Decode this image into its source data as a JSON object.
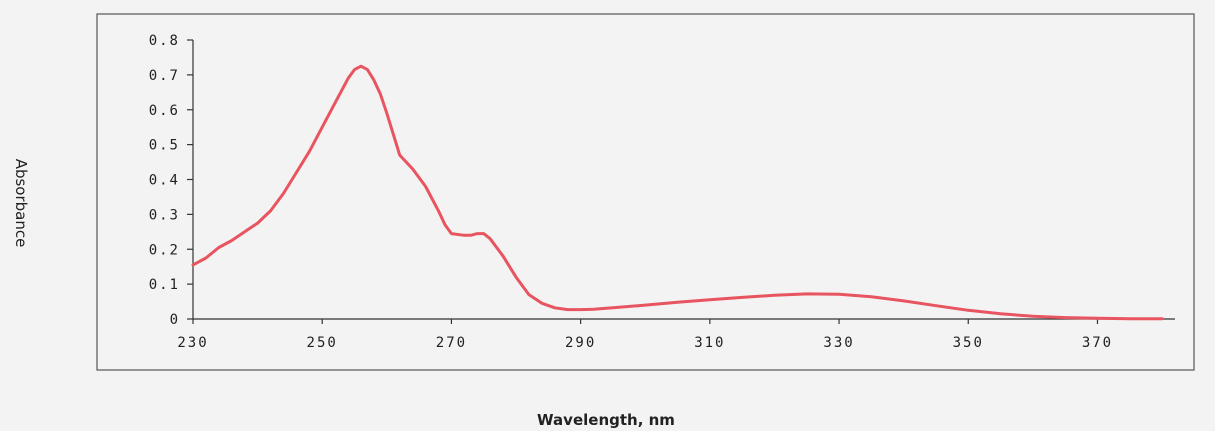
{
  "chart_data": {
    "type": "line",
    "title": "",
    "xlabel": "Wavelength, nm",
    "ylabel": "Absorbance",
    "xlim": [
      230,
      382
    ],
    "ylim": [
      0,
      0.8
    ],
    "x_ticks": [
      230,
      250,
      270,
      290,
      310,
      330,
      350,
      370
    ],
    "x_tick_labels": [
      "230",
      "250",
      "270",
      "290",
      "310",
      "330",
      "350",
      "370"
    ],
    "y_ticks": [
      0,
      0.1,
      0.2,
      0.3,
      0.4,
      0.5,
      0.6,
      0.7,
      0.8
    ],
    "y_tick_labels": [
      "0",
      "0.1",
      "0.2",
      "0.3",
      "0.4",
      "0.5",
      "0.6",
      "0.7",
      "0.8"
    ],
    "grid": false,
    "legend": false,
    "line_color": "#e8545f",
    "series": [
      {
        "x": [
          230,
          232,
          234,
          236,
          238,
          240,
          242,
          244,
          246,
          248,
          250,
          252,
          254,
          255,
          256,
          257,
          258,
          259,
          260,
          261,
          262,
          264,
          266,
          268,
          269,
          270,
          272,
          273,
          274,
          275,
          276,
          278,
          280,
          282,
          284,
          286,
          288,
          290,
          292,
          295,
          300,
          305,
          310,
          315,
          320,
          325,
          330,
          335,
          340,
          345,
          350,
          355,
          360,
          365,
          370,
          375,
          380
        ],
        "y": [
          0.155,
          0.175,
          0.205,
          0.225,
          0.25,
          0.275,
          0.31,
          0.36,
          0.42,
          0.48,
          0.55,
          0.62,
          0.69,
          0.715,
          0.725,
          0.715,
          0.685,
          0.645,
          0.59,
          0.53,
          0.47,
          0.43,
          0.38,
          0.31,
          0.27,
          0.245,
          0.24,
          0.24,
          0.245,
          0.245,
          0.23,
          0.18,
          0.12,
          0.07,
          0.045,
          0.032,
          0.027,
          0.027,
          0.028,
          0.032,
          0.04,
          0.048,
          0.055,
          0.062,
          0.068,
          0.072,
          0.071,
          0.064,
          0.052,
          0.038,
          0.025,
          0.015,
          0.008,
          0.004,
          0.002,
          0.001,
          0.001
        ]
      }
    ]
  }
}
